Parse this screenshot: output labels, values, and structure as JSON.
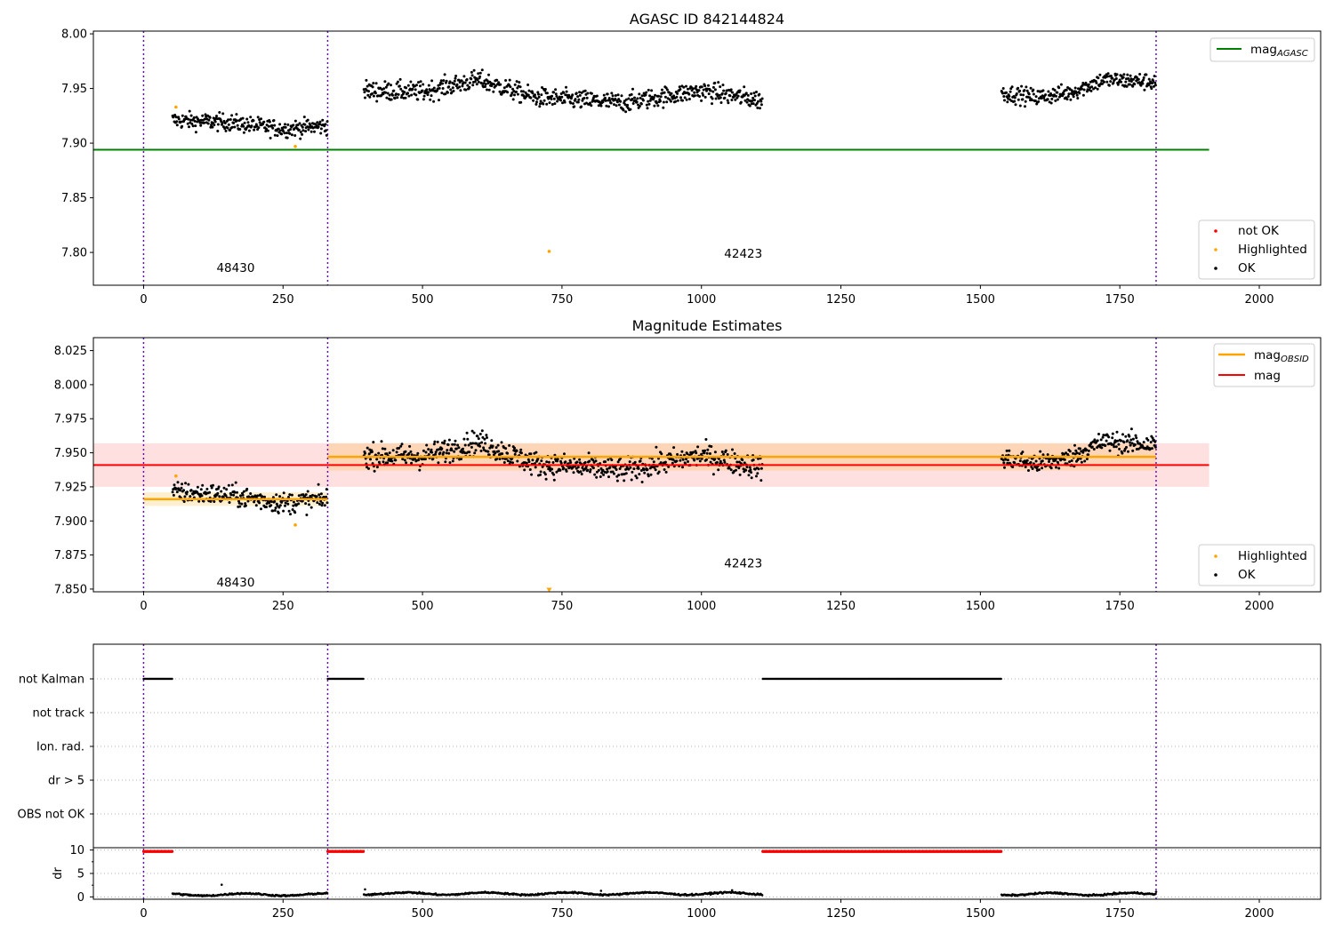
{
  "chart_data": [
    {
      "type": "scatter",
      "title": "AGASC ID 842144824",
      "xlim": [
        -90,
        2110
      ],
      "ylim": [
        7.77,
        8.0025
      ],
      "xticks": [
        0,
        250,
        500,
        750,
        1000,
        1250,
        1500,
        1750,
        2000
      ],
      "yticks": [
        "7.80",
        "7.85",
        "7.90",
        "7.95",
        "8.00"
      ],
      "obs_boundaries": [
        0,
        330,
        1815
      ],
      "obs_labels": [
        {
          "text": "48430",
          "x": 165,
          "y": 7.782
        },
        {
          "text": "42423",
          "x": 1075,
          "y": 7.795
        }
      ],
      "hlines": [
        {
          "name": "mag_AGASC",
          "y": 7.894,
          "x": [
            -90,
            1910
          ],
          "color": "#008000"
        }
      ],
      "legend_lines": [
        {
          "label": "mag",
          "subscript": "AGASC",
          "color": "#008000"
        }
      ],
      "legend_markers": [
        {
          "label": "not OK",
          "color": "#ff0000"
        },
        {
          "label": "Highlighted",
          "color": "#ffa500"
        },
        {
          "label": "OK",
          "color": "#000000"
        }
      ],
      "highlighted_points": [
        [
          58,
          7.933
        ],
        [
          272,
          7.897
        ],
        [
          727,
          7.801
        ]
      ],
      "ok_segments": [
        {
          "x": [
            52,
            330
          ],
          "trend": [
            [
              52,
              7.921
            ],
            [
              150,
              7.919
            ],
            [
              250,
              7.913
            ],
            [
              330,
              7.916
            ]
          ],
          "scatter": 0.007
        },
        {
          "x": [
            395,
            1110
          ],
          "trend": [
            [
              395,
              7.948
            ],
            [
              500,
              7.947
            ],
            [
              600,
              7.958
            ],
            [
              700,
              7.942
            ],
            [
              860,
              7.937
            ],
            [
              1000,
              7.948
            ],
            [
              1110,
              7.939
            ]
          ],
          "scatter": 0.008
        },
        {
          "x": [
            1538,
            1815
          ],
          "trend": [
            [
              1538,
              7.946
            ],
            [
              1600,
              7.942
            ],
            [
              1660,
              7.946
            ],
            [
              1720,
              7.958
            ],
            [
              1815,
              7.956
            ]
          ],
          "scatter": 0.007
        }
      ]
    },
    {
      "type": "scatter",
      "title": "Magnitude Estimates",
      "xlim": [
        -90,
        2110
      ],
      "ylim": [
        7.848,
        8.0345
      ],
      "xticks": [
        0,
        250,
        500,
        750,
        1000,
        1250,
        1500,
        1750,
        2000
      ],
      "yticks": [
        "7.850",
        "7.875",
        "7.900",
        "7.925",
        "7.950",
        "7.975",
        "8.000",
        "8.025"
      ],
      "obs_boundaries": [
        0,
        330,
        1815
      ],
      "obs_labels": [
        {
          "text": "48430",
          "x": 165,
          "y": 7.852
        },
        {
          "text": "42423",
          "x": 1075,
          "y": 7.866
        }
      ],
      "hlines": [
        {
          "name": "mag",
          "y": 7.941,
          "x": [
            -90,
            1910
          ],
          "color": "#ff0000",
          "band": [
            7.925,
            7.957
          ]
        },
        {
          "name": "mag_OBSID 48430",
          "y": 7.916,
          "x": [
            0,
            330
          ],
          "color": "#ffa500",
          "band": [
            7.911,
            7.921
          ]
        },
        {
          "name": "mag_OBSID 42423",
          "y": 7.947,
          "x": [
            330,
            1815
          ],
          "color": "#ffa500",
          "band": [
            7.937,
            7.957
          ]
        }
      ],
      "legend_lines": [
        {
          "label": "mag",
          "subscript": "OBSID",
          "color": "#ffa500"
        },
        {
          "label": "mag",
          "subscript": "",
          "color": "#ff0000"
        }
      ],
      "legend_markers": [
        {
          "label": "Highlighted",
          "color": "#ffa500"
        },
        {
          "label": "OK",
          "color": "#000000"
        }
      ],
      "highlighted_points": [
        [
          58,
          7.933
        ],
        [
          272,
          7.897
        ]
      ],
      "offscale_marker": {
        "x": 727,
        "y": 7.849,
        "color": "#ffa500"
      },
      "ok_segments": [
        {
          "x": [
            52,
            330
          ],
          "trend": [
            [
              52,
              7.921
            ],
            [
              150,
              7.919
            ],
            [
              250,
              7.913
            ],
            [
              330,
              7.916
            ]
          ],
          "scatter": 0.007
        },
        {
          "x": [
            395,
            1110
          ],
          "trend": [
            [
              395,
              7.948
            ],
            [
              500,
              7.947
            ],
            [
              600,
              7.958
            ],
            [
              700,
              7.942
            ],
            [
              860,
              7.937
            ],
            [
              1000,
              7.948
            ],
            [
              1110,
              7.939
            ]
          ],
          "scatter": 0.008
        },
        {
          "x": [
            1538,
            1815
          ],
          "trend": [
            [
              1538,
              7.946
            ],
            [
              1600,
              7.942
            ],
            [
              1660,
              7.946
            ],
            [
              1720,
              7.958
            ],
            [
              1815,
              7.956
            ]
          ],
          "scatter": 0.007
        }
      ]
    },
    {
      "type": "scatter",
      "title": "",
      "xlim": [
        -90,
        2110
      ],
      "xticks": [
        0,
        250,
        500,
        750,
        1000,
        1250,
        1500,
        1750,
        2000
      ],
      "obs_boundaries": [
        0,
        330,
        1815
      ],
      "flags": [
        "not Kalman",
        "not track",
        "Ion. rad.",
        "dr > 5",
        "OBS not OK"
      ],
      "flag_segments": [
        {
          "flag": "not Kalman",
          "x": [
            0,
            52
          ]
        },
        {
          "flag": "not Kalman",
          "x": [
            330,
            395
          ]
        },
        {
          "flag": "not Kalman",
          "x": [
            1110,
            1538
          ]
        }
      ],
      "dr_ylabel": "dr",
      "dr_yticks": [
        "0",
        "5",
        "10"
      ],
      "dr_ylim": [
        -0.5,
        10.5
      ],
      "dr_capped": [
        {
          "x": [
            0,
            52
          ],
          "y": 9.7
        },
        {
          "x": [
            330,
            395
          ],
          "y": 9.7
        },
        {
          "x": [
            1110,
            1538
          ],
          "y": 9.7
        }
      ],
      "dr_ok_segments": [
        {
          "x": [
            52,
            330
          ],
          "y": 0.5,
          "spikes": [
            [
              140,
              2.6
            ]
          ]
        },
        {
          "x": [
            395,
            1110
          ],
          "y": 0.7,
          "spikes": [
            [
              397,
              1.6
            ],
            [
              820,
              1.3
            ],
            [
              1055,
              1.4
            ]
          ]
        },
        {
          "x": [
            1538,
            1815
          ],
          "y": 0.6,
          "spikes": [
            [
              1815,
              1.1
            ]
          ]
        }
      ]
    }
  ]
}
